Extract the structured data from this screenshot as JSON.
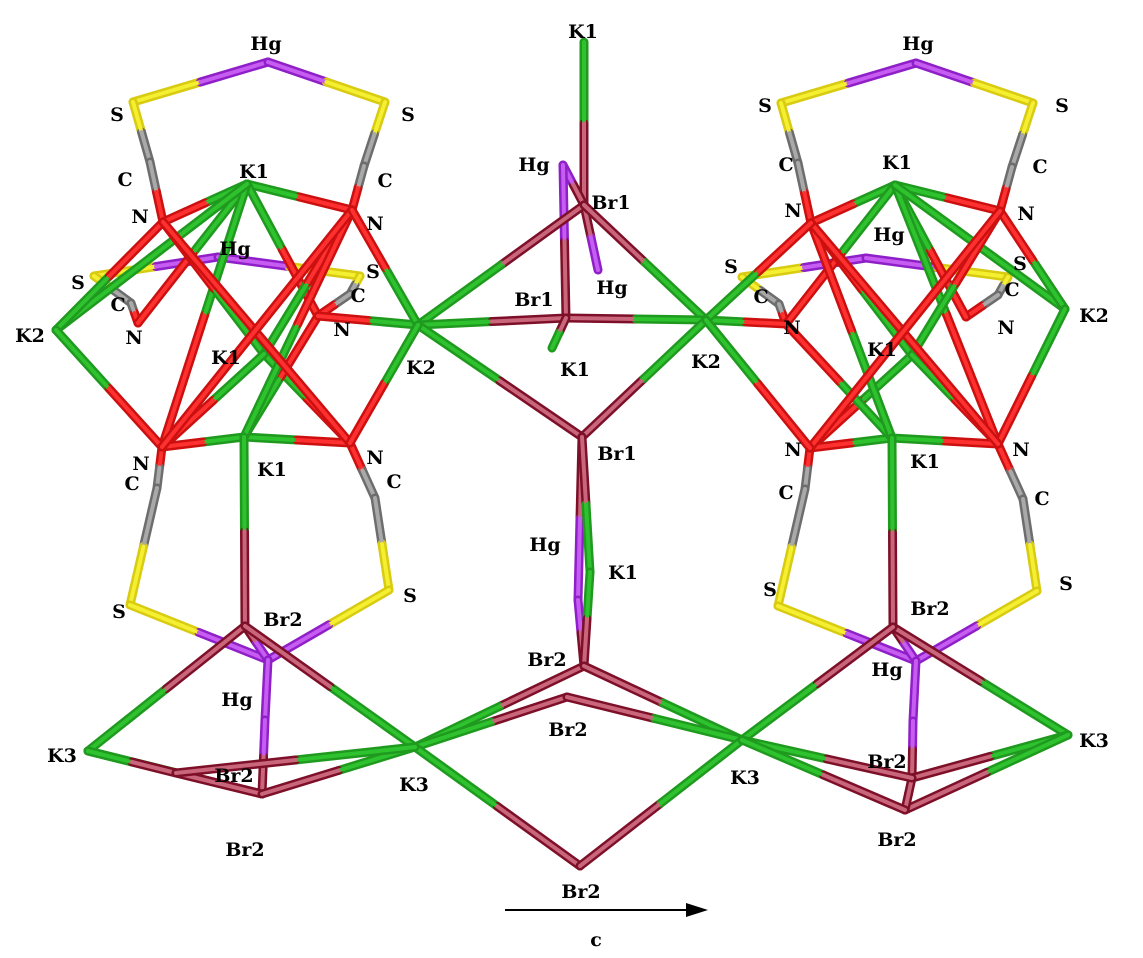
{
  "colors": {
    "K": [
      "#1f9a1f",
      "#2fc22f"
    ],
    "Br": [
      "#7d1028",
      "#c9667c"
    ],
    "Hg": [
      "#8f1fc6",
      "#c75cf2"
    ],
    "S": [
      "#d8cb12",
      "#f4ef30"
    ],
    "C": [
      "#6d6d6d",
      "#a9a9a9"
    ],
    "N": [
      "#cc1010",
      "#ff3030"
    ]
  },
  "atom_labels": [
    {
      "id": "top-k1",
      "text": "K1"
    },
    {
      "id": "center-hg-a",
      "text": "Hg"
    },
    {
      "id": "center-br1-top",
      "text": "Br1"
    },
    {
      "id": "center-hg-b",
      "text": "Hg"
    },
    {
      "id": "center-br1-mid",
      "text": "Br1"
    },
    {
      "id": "center-k1-mid",
      "text": "K1"
    },
    {
      "id": "left-k2-center",
      "text": "K2"
    },
    {
      "id": "right-k2-center",
      "text": "K2"
    },
    {
      "id": "center-br1-low",
      "text": "Br1"
    },
    {
      "id": "center-hg-c",
      "text": "Hg"
    },
    {
      "id": "center-k1-low",
      "text": "K1"
    },
    {
      "id": "center-br2-top",
      "text": "Br2"
    },
    {
      "id": "center-br2-mid",
      "text": "Br2"
    },
    {
      "id": "center-k3-left",
      "text": "K3"
    },
    {
      "id": "center-k3-right",
      "text": "K3"
    },
    {
      "id": "center-br2-bottom",
      "text": "Br2"
    },
    {
      "id": "L-hg-top",
      "text": "Hg"
    },
    {
      "id": "L-s-tl",
      "text": "S"
    },
    {
      "id": "L-s-tr",
      "text": "S"
    },
    {
      "id": "L-c-tl",
      "text": "C"
    },
    {
      "id": "L-c-tr",
      "text": "C"
    },
    {
      "id": "L-k1-top",
      "text": "K1"
    },
    {
      "id": "L-n-tl",
      "text": "N"
    },
    {
      "id": "L-n-tr",
      "text": "N"
    },
    {
      "id": "L-hg-mid",
      "text": "Hg"
    },
    {
      "id": "L-s-ml",
      "text": "S"
    },
    {
      "id": "L-s-mr",
      "text": "S"
    },
    {
      "id": "L-c-ml",
      "text": "C"
    },
    {
      "id": "L-c-mr",
      "text": "C"
    },
    {
      "id": "L-n-ml",
      "text": "N"
    },
    {
      "id": "L-n-mr",
      "text": "N"
    },
    {
      "id": "L-k2",
      "text": "K2"
    },
    {
      "id": "L-k1-mid",
      "text": "K1"
    },
    {
      "id": "L-n-bl",
      "text": "N"
    },
    {
      "id": "L-n-br",
      "text": "N"
    },
    {
      "id": "L-k1-low",
      "text": "K1"
    },
    {
      "id": "L-c-bl",
      "text": "C"
    },
    {
      "id": "L-c-br",
      "text": "C"
    },
    {
      "id": "L-s-bl",
      "text": "S"
    },
    {
      "id": "L-s-br",
      "text": "S"
    },
    {
      "id": "L-br2-a",
      "text": "Br2"
    },
    {
      "id": "L-hg-low",
      "text": "Hg"
    },
    {
      "id": "L-k3",
      "text": "K3"
    },
    {
      "id": "L-br2-b",
      "text": "Br2"
    },
    {
      "id": "L-br2-c",
      "text": "Br2"
    },
    {
      "id": "R-hg-top",
      "text": "Hg"
    },
    {
      "id": "R-s-tl",
      "text": "S"
    },
    {
      "id": "R-s-tr",
      "text": "S"
    },
    {
      "id": "R-c-tl",
      "text": "C"
    },
    {
      "id": "R-c-tr",
      "text": "C"
    },
    {
      "id": "R-k1-top",
      "text": "K1"
    },
    {
      "id": "R-n-tl",
      "text": "N"
    },
    {
      "id": "R-n-tr",
      "text": "N"
    },
    {
      "id": "R-hg-mid",
      "text": "Hg"
    },
    {
      "id": "R-s-ml",
      "text": "S"
    },
    {
      "id": "R-s-mr",
      "text": "S"
    },
    {
      "id": "R-c-ml",
      "text": "C"
    },
    {
      "id": "R-c-mr",
      "text": "C"
    },
    {
      "id": "R-n-ml",
      "text": "N"
    },
    {
      "id": "R-n-mr",
      "text": "N"
    },
    {
      "id": "R-k2",
      "text": "K2"
    },
    {
      "id": "R-k1-mid",
      "text": "K1"
    },
    {
      "id": "R-n-bl",
      "text": "N"
    },
    {
      "id": "R-n-br",
      "text": "N"
    },
    {
      "id": "R-k1-low",
      "text": "K1"
    },
    {
      "id": "R-c-bl",
      "text": "C"
    },
    {
      "id": "R-c-br",
      "text": "C"
    },
    {
      "id": "R-s-bl",
      "text": "S"
    },
    {
      "id": "R-s-br",
      "text": "S"
    },
    {
      "id": "R-br2-a",
      "text": "Br2"
    },
    {
      "id": "R-hg-low",
      "text": "Hg"
    },
    {
      "id": "R-k3",
      "text": "K3"
    },
    {
      "id": "R-br2-b",
      "text": "Br2"
    },
    {
      "id": "R-br2-c",
      "text": "Br2"
    }
  ],
  "axis": {
    "label": "c"
  }
}
